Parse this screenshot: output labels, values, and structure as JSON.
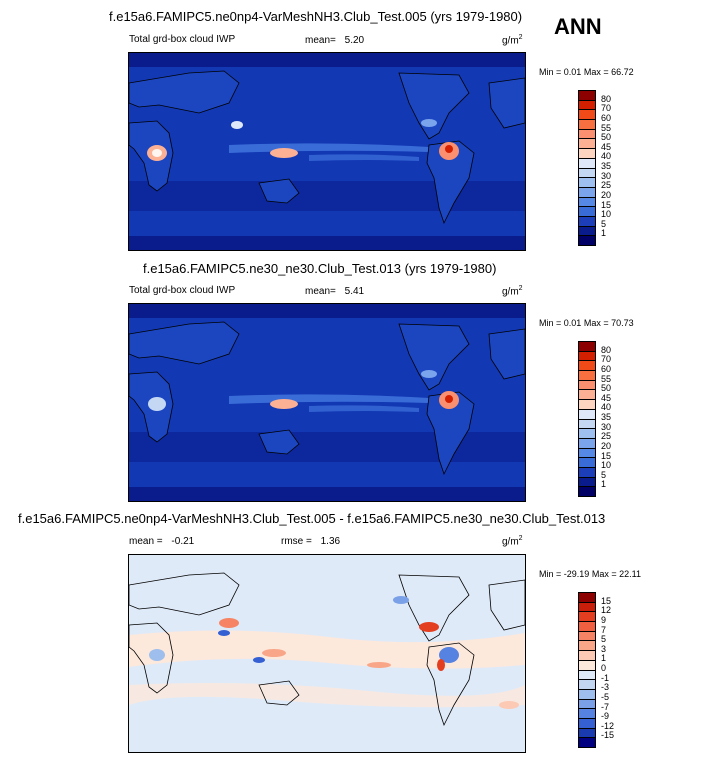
{
  "season": "ANN",
  "panels": [
    {
      "title": "f.e15a6.FAMIPC5.ne0np4-VarMeshNH3.Club_Test.005 (yrs 1979-1980)",
      "variable": "Total grd-box cloud IWP",
      "mean_label": "mean=",
      "mean_value": "5.20",
      "units": "g/m",
      "units_sup": "2",
      "min_label": "Min =",
      "min_value": "0.01",
      "max_label": "Max =",
      "max_value": "66.72",
      "colorbar_levels": [
        "80",
        "70",
        "60",
        "55",
        "50",
        "45",
        "40",
        "35",
        "30",
        "25",
        "20",
        "15",
        "10",
        "5",
        "1"
      ],
      "colorbar_colors": [
        "#8c0000",
        "#d42000",
        "#f04a18",
        "#f87040",
        "#fa9070",
        "#fcb094",
        "#fdd4c0",
        "#dfe8f8",
        "#c4d8f4",
        "#9ec0f0",
        "#7aa4ec",
        "#5688e6",
        "#3a6cd8",
        "#1c3eb8",
        "#0a1c8c",
        "#000066"
      ]
    },
    {
      "title": "f.e15a6.FAMIPC5.ne30_ne30.Club_Test.013 (yrs 1979-1980)",
      "variable": "Total grd-box cloud IWP",
      "mean_label": "mean=",
      "mean_value": "5.41",
      "units": "g/m",
      "units_sup": "2",
      "min_label": "Min =",
      "min_value": "0.01",
      "max_label": "Max =",
      "max_value": "70.73",
      "colorbar_levels": [
        "80",
        "70",
        "60",
        "55",
        "50",
        "45",
        "40",
        "35",
        "30",
        "25",
        "20",
        "15",
        "10",
        "5",
        "1"
      ],
      "colorbar_colors": [
        "#8c0000",
        "#d42000",
        "#f04a18",
        "#f87040",
        "#fa9070",
        "#fcb094",
        "#fdd4c0",
        "#dfe8f8",
        "#c4d8f4",
        "#9ec0f0",
        "#7aa4ec",
        "#5688e6",
        "#3a6cd8",
        "#1c3eb8",
        "#0a1c8c",
        "#000066"
      ]
    },
    {
      "title": "f.e15a6.FAMIPC5.ne0np4-VarMeshNH3.Club_Test.005 - f.e15a6.FAMIPC5.ne30_ne30.Club_Test.013",
      "mean_label": "mean =",
      "mean_value": "-0.21",
      "rmse_label": "rmse =",
      "rmse_value": "1.36",
      "units": "g/m",
      "units_sup": "2",
      "min_label": "Min =",
      "min_value": "-29.19",
      "max_label": "Max =",
      "max_value": "22.11",
      "colorbar_levels": [
        "15",
        "12",
        "9",
        "7",
        "5",
        "3",
        "1",
        "0",
        "-1",
        "-3",
        "-5",
        "-7",
        "-9",
        "-12",
        "-15"
      ],
      "colorbar_colors": [
        "#8c0000",
        "#c81e0a",
        "#e43e20",
        "#f06040",
        "#f68464",
        "#f9a688",
        "#fccab4",
        "#fde8dc",
        "#dfeaf8",
        "#c2d6f2",
        "#9ebeee",
        "#7aa0e8",
        "#5682e2",
        "#3460d4",
        "#1a3ab0",
        "#000080"
      ]
    }
  ]
}
